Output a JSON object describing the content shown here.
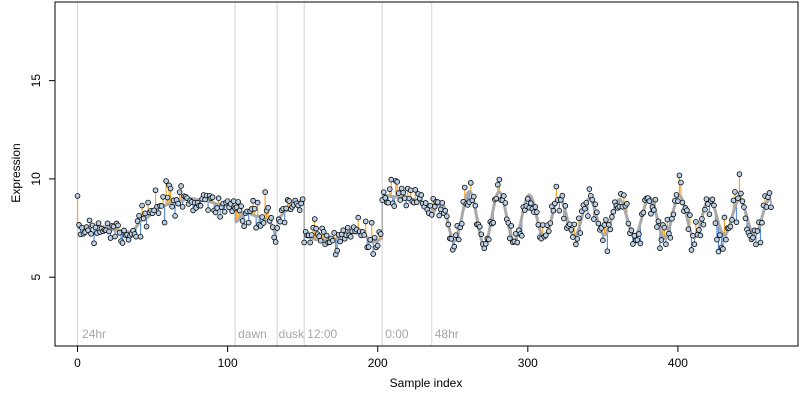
{
  "chart_data": {
    "type": "scatter",
    "title": "",
    "xlabel": "Sample index",
    "ylabel": "Expression",
    "xlim": [
      -15,
      480
    ],
    "ylim": [
      1.5,
      19.0
    ],
    "xticks": [
      0,
      100,
      200,
      300,
      400
    ],
    "yticks": [
      5,
      10,
      15
    ],
    "xtick_labels": [
      "0",
      "100",
      "200",
      "300",
      "400"
    ],
    "ytick_labels": [
      "5",
      "10",
      "15"
    ],
    "grid": false,
    "legend": "none",
    "colors": {
      "fit_line": "#a9a9a9",
      "residual_above": "#f4a52a",
      "residual_below": "#5b8fd6",
      "point_fill": "#b8cfe6",
      "point_stroke": "#000000",
      "separator": "#d3d3d3",
      "annotation": "#a6a6a6"
    },
    "separators": [
      0,
      105,
      133,
      151,
      203,
      236
    ],
    "annotations": [
      {
        "x": 3,
        "text": "24hr"
      },
      {
        "x": 107,
        "text": "dawn"
      },
      {
        "x": 134,
        "text": "dusk"
      },
      {
        "x": 153,
        "text": "12:00"
      },
      {
        "x": 205,
        "text": "0:00"
      },
      {
        "x": 238,
        "text": "48hr"
      }
    ],
    "segments": [
      {
        "start": 0,
        "end": 104,
        "kind": "trend",
        "knots": [
          [
            0,
            7.5
          ],
          [
            15,
            7.6
          ],
          [
            25,
            7.4
          ],
          [
            35,
            7.3
          ],
          [
            45,
            8.0
          ],
          [
            55,
            8.6
          ],
          [
            65,
            8.8
          ],
          [
            75,
            9.0
          ],
          [
            85,
            8.9
          ],
          [
            95,
            8.7
          ],
          [
            104,
            8.6
          ]
        ]
      },
      {
        "start": 105,
        "end": 132,
        "kind": "trend",
        "knots": [
          [
            105,
            7.8
          ],
          [
            112,
            8.3
          ],
          [
            120,
            8.1
          ],
          [
            127,
            7.9
          ],
          [
            132,
            7.3
          ]
        ]
      },
      {
        "start": 133,
        "end": 150,
        "kind": "trend",
        "knots": [
          [
            133,
            8.0
          ],
          [
            140,
            8.4
          ],
          [
            146,
            8.7
          ],
          [
            150,
            9.0
          ]
        ]
      },
      {
        "start": 151,
        "end": 202,
        "kind": "trend",
        "knots": [
          [
            151,
            7.1
          ],
          [
            160,
            6.9
          ],
          [
            170,
            6.9
          ],
          [
            180,
            7.3
          ],
          [
            190,
            7.2
          ],
          [
            196,
            6.8
          ],
          [
            202,
            6.9
          ]
        ]
      },
      {
        "start": 203,
        "end": 235,
        "kind": "trend",
        "knots": [
          [
            203,
            9.2
          ],
          [
            210,
            9.1
          ],
          [
            220,
            9.0
          ],
          [
            228,
            8.9
          ],
          [
            235,
            8.5
          ]
        ]
      },
      {
        "start": 236,
        "end": 462,
        "kind": "wave",
        "mean": 8.05,
        "period": 20,
        "amp_knots": [
          [
            236,
            0.6
          ],
          [
            250,
            1.2
          ],
          [
            270,
            1.4
          ],
          [
            290,
            1.2
          ],
          [
            320,
            1.0
          ],
          [
            360,
            0.9
          ],
          [
            400,
            1.1
          ],
          [
            430,
            0.9
          ],
          [
            462,
            0.9
          ]
        ]
      }
    ],
    "noise_seed": 7,
    "noise_sd": 0.42,
    "n_points": 463
  }
}
